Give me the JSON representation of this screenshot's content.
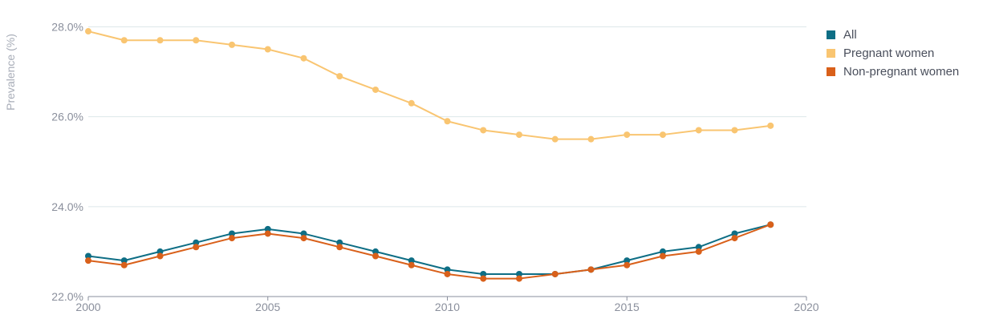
{
  "chart_data": {
    "type": "line",
    "ylabel": "Prevalence (%)",
    "xlabel": "",
    "xlim": [
      2000,
      2020
    ],
    "ylim": [
      22.0,
      28.4
    ],
    "x_ticks": [
      2000,
      2005,
      2010,
      2015,
      2020
    ],
    "y_ticks": [
      22.0,
      24.0,
      26.0,
      28.0
    ],
    "y_tick_labels": [
      "22.0%",
      "24.0%",
      "26.0%",
      "28.0%"
    ],
    "grid": "horizontal",
    "legend_position": "top-right",
    "x": [
      2000,
      2001,
      2002,
      2003,
      2004,
      2005,
      2006,
      2007,
      2008,
      2009,
      2010,
      2011,
      2012,
      2013,
      2014,
      2015,
      2016,
      2017,
      2018,
      2019
    ],
    "series": [
      {
        "name": "All",
        "color": "#0e6e85",
        "values": [
          22.9,
          22.8,
          23.0,
          23.2,
          23.4,
          23.5,
          23.4,
          23.2,
          23.0,
          22.8,
          22.6,
          22.5,
          22.5,
          22.5,
          22.6,
          22.8,
          23.0,
          23.1,
          23.4,
          23.6
        ]
      },
      {
        "name": "Pregnant women",
        "color": "#f9c571",
        "values": [
          27.9,
          27.7,
          27.7,
          27.7,
          27.6,
          27.5,
          27.3,
          26.9,
          26.6,
          26.3,
          25.9,
          25.7,
          25.6,
          25.5,
          25.5,
          25.6,
          25.6,
          25.7,
          25.7,
          25.8
        ]
      },
      {
        "name": "Non-pregnant women",
        "color": "#d9601a",
        "values": [
          22.8,
          22.7,
          22.9,
          23.1,
          23.3,
          23.4,
          23.3,
          23.1,
          22.9,
          22.7,
          22.5,
          22.4,
          22.4,
          22.5,
          22.6,
          22.7,
          22.9,
          23.0,
          23.3,
          23.6
        ]
      }
    ]
  }
}
